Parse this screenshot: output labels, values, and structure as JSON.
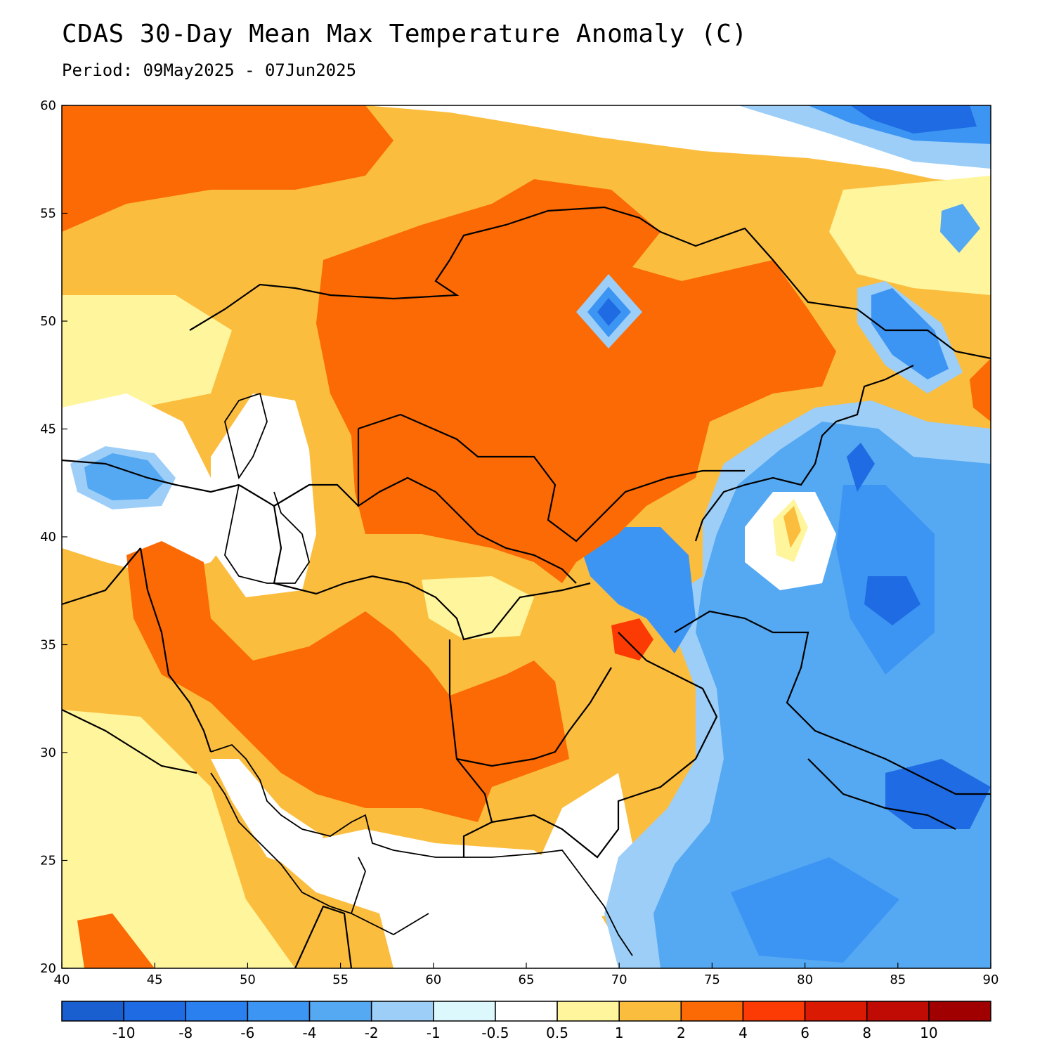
{
  "title": "CDAS 30-Day Mean Max Temperature Anomaly (C)",
  "subtitle": "Period: 09May2025 - 07Jun2025",
  "map": {
    "lon_range": [
      40,
      90
    ],
    "lat_range": [
      20,
      60
    ],
    "lon_ticks": [
      "40",
      "45",
      "50",
      "55",
      "60",
      "65",
      "70",
      "75",
      "80",
      "85",
      "90"
    ],
    "lat_ticks": [
      "20",
      "25",
      "30",
      "35",
      "40",
      "45",
      "50",
      "55",
      "60"
    ]
  },
  "colorbar": {
    "colors": [
      "#1a5fd0",
      "#1f6be3",
      "#2b80ef",
      "#3d95f3",
      "#55a8f2",
      "#9ccef8",
      "#dcf8fd",
      "#ffffff",
      "#fff59c",
      "#fbbd3e",
      "#fb6a04",
      "#fb3a04",
      "#db1a04",
      "#c00a04",
      "#a00000"
    ],
    "labels": [
      "-10",
      "-8",
      "-6",
      "-4",
      "-2",
      "-1",
      "-0.5",
      "0.5",
      "1",
      "2",
      "4",
      "6",
      "8",
      "10"
    ]
  }
}
